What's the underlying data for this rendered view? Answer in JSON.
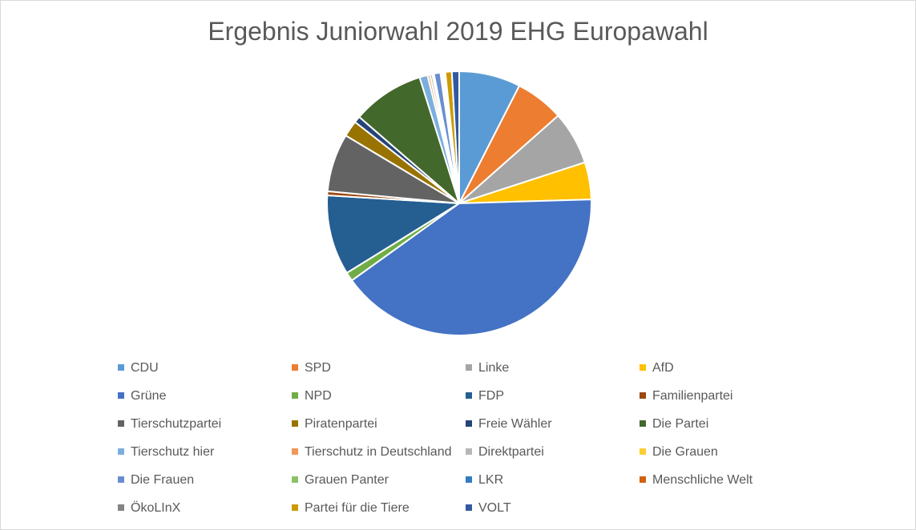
{
  "chart_data": {
    "type": "pie",
    "title": "Ergebnis Juniorwahl 2019 EHG Europawahl",
    "legend_position": "bottom",
    "series": [
      {
        "name": "CDU",
        "value": 7.6,
        "color": "#5b9bd5"
      },
      {
        "name": "SPD",
        "value": 6.0,
        "color": "#ed7d31"
      },
      {
        "name": "Linke",
        "value": 6.6,
        "color": "#a5a5a5"
      },
      {
        "name": "AfD",
        "value": 4.6,
        "color": "#ffc000"
      },
      {
        "name": "Grüne",
        "value": 41.0,
        "color": "#4472c4"
      },
      {
        "name": "NPD",
        "value": 1.1,
        "color": "#70ad47"
      },
      {
        "name": "FDP",
        "value": 9.9,
        "color": "#255e91"
      },
      {
        "name": "Familienpartei",
        "value": 0.5,
        "color": "#9e480e"
      },
      {
        "name": "Tierschutzpartei",
        "value": 7.2,
        "color": "#636363"
      },
      {
        "name": "Piratenpartei",
        "value": 2.0,
        "color": "#997300"
      },
      {
        "name": "Freie Wähler",
        "value": 0.8,
        "color": "#264478"
      },
      {
        "name": "Die Partei",
        "value": 8.9,
        "color": "#43682b"
      },
      {
        "name": "Tierschutz hier",
        "value": 1.0,
        "color": "#7cafdd"
      },
      {
        "name": "Tierschutz in Deutschland",
        "value": 0.3,
        "color": "#f1975a"
      },
      {
        "name": "Direktpartei",
        "value": 0.3,
        "color": "#b7b7b7"
      },
      {
        "name": "Die Grauen",
        "value": 0.2,
        "color": "#ffcd33"
      },
      {
        "name": "Die Frauen",
        "value": 0.8,
        "color": "#698ed0"
      },
      {
        "name": "Grauen Panter",
        "value": 0.2,
        "color": "#8cc168"
      },
      {
        "name": "LKR",
        "value": 0.2,
        "color": "#327dc2"
      },
      {
        "name": "Menschliche Welt",
        "value": 0.1,
        "color": "#d26012"
      },
      {
        "name": "ÖkoLInX",
        "value": 0.1,
        "color": "#848484"
      },
      {
        "name": "Partei für die Tiere",
        "value": 0.8,
        "color": "#cc9a00"
      },
      {
        "name": "VOLT",
        "value": 0.9,
        "color": "#335aa1"
      }
    ]
  }
}
